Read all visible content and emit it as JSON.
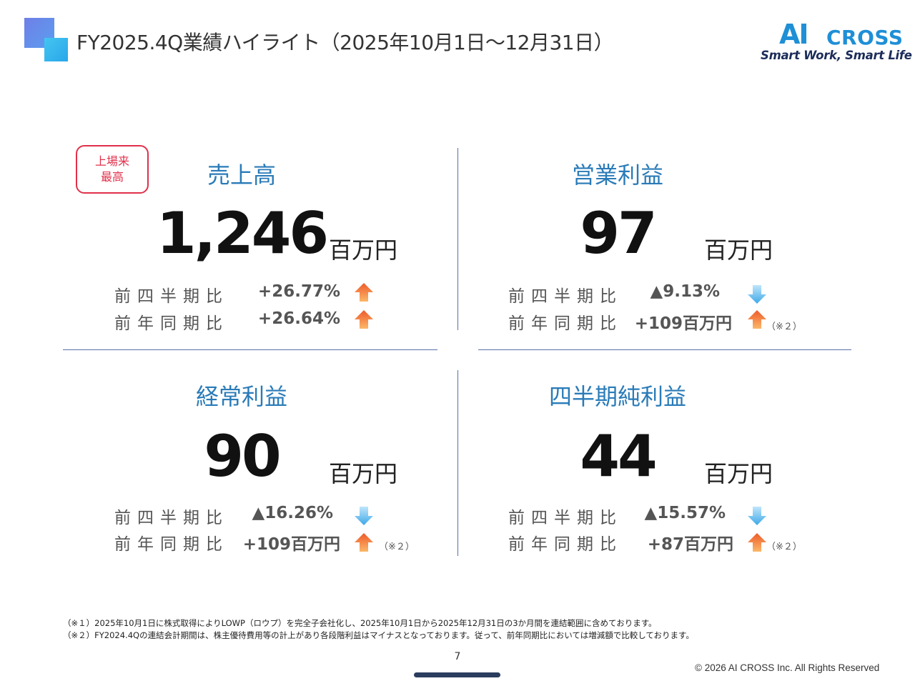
{
  "header": {
    "title": "FY2025.4Q業績ハイライト（2025年10月1日～12月31日）",
    "brand_ai": "AI",
    "brand_cross": "CROSS",
    "brand_tagline": "Smart Work, Smart Life"
  },
  "badge": {
    "line1": "上場来",
    "line2": "最高"
  },
  "colors": {
    "title_blue": "#2a7bb8",
    "badge_red": "#e0304a",
    "divider": "#5b6fa8",
    "up_arrow": "#f07a3a",
    "down_arrow": "#4fb3ea"
  },
  "quadrants": [
    {
      "title": "売上高",
      "value": "1,246",
      "unit": "百万円",
      "rows": [
        {
          "label": "前四半期比",
          "value": "+26.77%",
          "direction": "up",
          "note": ""
        },
        {
          "label": "前年同期比",
          "value": "+26.64%",
          "direction": "up",
          "note": ""
        }
      ]
    },
    {
      "title": "営業利益",
      "value": "97",
      "unit": "百万円",
      "rows": [
        {
          "label": "前四半期比",
          "value": "▲9.13%",
          "direction": "down",
          "note": ""
        },
        {
          "label": "前年同期比",
          "value": "+109百万円",
          "direction": "up",
          "note": "（※２）"
        }
      ]
    },
    {
      "title": "経常利益",
      "value": "90",
      "unit": "百万円",
      "rows": [
        {
          "label": "前四半期比",
          "value": "▲16.26%",
          "direction": "down",
          "note": ""
        },
        {
          "label": "前年同期比",
          "value": "+109百万円",
          "direction": "up",
          "note": "（※２）"
        }
      ]
    },
    {
      "title": "四半期純利益",
      "value": "44",
      "unit": "百万円",
      "rows": [
        {
          "label": "前四半期比",
          "value": "▲15.57%",
          "direction": "down",
          "note": ""
        },
        {
          "label": "前年同期比",
          "value": "+87百万円",
          "direction": "up",
          "note": "（※２）"
        }
      ]
    }
  ],
  "footnotes": [
    "（※１）2025年10月1日に株式取得によりLOWP（ロウプ）を完全子会社化し、2025年10月1日から2025年12月31日の3か月間を連結範囲に含めております。",
    "（※２）FY2024.4Qの連結会計期間は、株主優待費用等の計上があり各段階利益はマイナスとなっております。従って、前年同期比においては増減額で比較しております。"
  ],
  "page_number": "7",
  "copyright": "© 2026 AI CROSS Inc. All Rights Reserved"
}
